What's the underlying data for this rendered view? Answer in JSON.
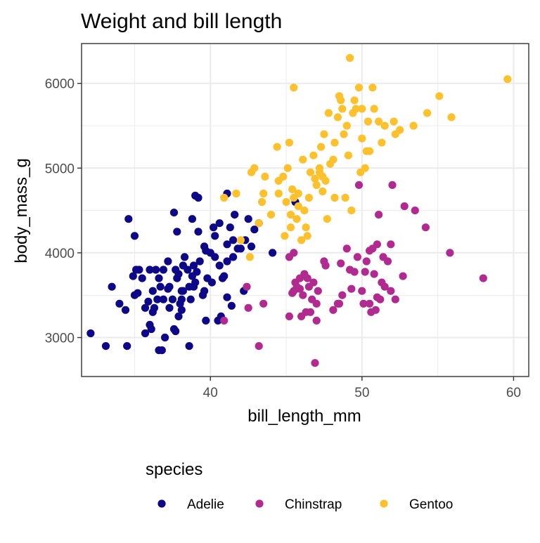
{
  "chart_data": {
    "type": "scatter",
    "title": "Weight and bill length",
    "xlabel": "bill_length_mm",
    "ylabel": "body_mass_g",
    "xlim": [
      31.5,
      61
    ],
    "ylim": [
      2540,
      6470
    ],
    "xticks": [
      40,
      50,
      60
    ],
    "yticks": [
      3000,
      4000,
      5000,
      6000
    ],
    "grid": true,
    "legend": {
      "title": "species",
      "position": "bottom"
    },
    "series": [
      {
        "name": "Adelie",
        "color": "#0d0887",
        "points": [
          [
            32.1,
            3050
          ],
          [
            33.1,
            2900
          ],
          [
            33.5,
            3600
          ],
          [
            34.0,
            3400
          ],
          [
            34.4,
            3325
          ],
          [
            34.5,
            2900
          ],
          [
            34.6,
            4400
          ],
          [
            35.0,
            4200
          ],
          [
            34.9,
            3725
          ],
          [
            35.1,
            3800
          ],
          [
            35.3,
            3800
          ],
          [
            35.5,
            3700
          ],
          [
            35.7,
            3350
          ],
          [
            35.9,
            3425
          ],
          [
            36.0,
            3800
          ],
          [
            36.2,
            3300
          ],
          [
            36.2,
            3550
          ],
          [
            36.4,
            3800
          ],
          [
            36.5,
            3450
          ],
          [
            36.6,
            3700
          ],
          [
            36.6,
            2850
          ],
          [
            36.8,
            2850
          ],
          [
            36.9,
            3800
          ],
          [
            37.0,
            3000
          ],
          [
            37.2,
            3575
          ],
          [
            37.3,
            3350
          ],
          [
            37.5,
            3450
          ],
          [
            37.6,
            4475
          ],
          [
            37.7,
            3075
          ],
          [
            37.8,
            4250
          ],
          [
            37.8,
            3700
          ],
          [
            37.9,
            3750
          ],
          [
            38.1,
            3325
          ],
          [
            38.1,
            3550
          ],
          [
            38.3,
            3950
          ],
          [
            38.5,
            3800
          ],
          [
            38.6,
            3600
          ],
          [
            38.6,
            2900
          ],
          [
            38.7,
            3450
          ],
          [
            38.8,
            3725
          ],
          [
            38.9,
            3600
          ],
          [
            39.0,
            4675
          ],
          [
            39.0,
            3650
          ],
          [
            39.2,
            4650
          ],
          [
            39.2,
            4250
          ],
          [
            39.5,
            3500
          ],
          [
            39.6,
            3550
          ],
          [
            39.7,
            3200
          ],
          [
            39.8,
            3700
          ],
          [
            40.0,
            4000
          ],
          [
            40.2,
            4300
          ],
          [
            40.3,
            3950
          ],
          [
            40.6,
            4350
          ],
          [
            40.7,
            3250
          ],
          [
            40.9,
            3725
          ],
          [
            41.1,
            3900
          ],
          [
            41.1,
            4100
          ],
          [
            41.3,
            4300
          ],
          [
            41.4,
            3375
          ],
          [
            41.5,
            3950
          ],
          [
            41.6,
            4450
          ],
          [
            41.1,
            4700
          ],
          [
            41.8,
            4050
          ],
          [
            42.0,
            4050
          ],
          [
            42.2,
            3550
          ],
          [
            42.3,
            4150
          ],
          [
            42.5,
            4400
          ],
          [
            42.7,
            4075
          ],
          [
            42.9,
            4275
          ],
          [
            43.2,
            4350
          ],
          [
            44.1,
            4000
          ],
          [
            45.6,
            4600
          ],
          [
            36.7,
            3600
          ],
          [
            37.2,
            3900
          ],
          [
            38.2,
            3850
          ],
          [
            38.0,
            3400
          ],
          [
            40.5,
            3200
          ],
          [
            36.0,
            3150
          ],
          [
            35.7,
            3050
          ],
          [
            35.2,
            3525
          ],
          [
            37.6,
            3100
          ],
          [
            39.3,
            3900
          ],
          [
            38.8,
            4400
          ],
          [
            40.1,
            3650
          ],
          [
            36.3,
            3350
          ],
          [
            37.7,
            3800
          ],
          [
            41.1,
            3475
          ],
          [
            38.9,
            3850
          ],
          [
            39.6,
            4075
          ],
          [
            40.8,
            3700
          ],
          [
            36.9,
            3450
          ],
          [
            38.2,
            3550
          ],
          [
            39.1,
            3775
          ],
          [
            40.3,
            4200
          ],
          [
            37.3,
            3600
          ],
          [
            35.0,
            3500
          ],
          [
            36.1,
            3100
          ],
          [
            38.1,
            3450
          ],
          [
            40.6,
            3850
          ],
          [
            39.7,
            4025
          ],
          [
            41.5,
            4150
          ],
          [
            37.9,
            3250
          ]
        ]
      },
      {
        "name": "Chinstrap",
        "color": "#b12a90",
        "points": [
          [
            40.9,
            3200
          ],
          [
            42.4,
            3600
          ],
          [
            42.5,
            3350
          ],
          [
            43.2,
            2900
          ],
          [
            43.5,
            3400
          ],
          [
            45.2,
            3250
          ],
          [
            45.2,
            3950
          ],
          [
            45.4,
            3525
          ],
          [
            45.5,
            3550
          ],
          [
            45.6,
            3650
          ],
          [
            45.7,
            3600
          ],
          [
            45.9,
            3575
          ],
          [
            46.0,
            3250
          ],
          [
            46.1,
            3500
          ],
          [
            46.2,
            3750
          ],
          [
            46.4,
            3700
          ],
          [
            46.5,
            3600
          ],
          [
            46.6,
            3300
          ],
          [
            46.8,
            3650
          ],
          [
            46.9,
            2700
          ],
          [
            47.0,
            3400
          ],
          [
            47.5,
            3900
          ],
          [
            47.6,
            3850
          ],
          [
            48.1,
            3325
          ],
          [
            48.5,
            3400
          ],
          [
            48.7,
            3500
          ],
          [
            49.0,
            4050
          ],
          [
            49.2,
            3800
          ],
          [
            49.5,
            3775
          ],
          [
            49.8,
            4800
          ],
          [
            49.7,
            3950
          ],
          [
            50.0,
            3550
          ],
          [
            50.2,
            3775
          ],
          [
            50.3,
            3900
          ],
          [
            50.5,
            3400
          ],
          [
            50.6,
            3300
          ],
          [
            50.7,
            4050
          ],
          [
            50.8,
            3750
          ],
          [
            50.9,
            3325
          ],
          [
            51.0,
            4100
          ],
          [
            51.2,
            3450
          ],
          [
            51.3,
            3650
          ],
          [
            51.4,
            3950
          ],
          [
            51.5,
            3600
          ],
          [
            51.7,
            3900
          ],
          [
            51.9,
            4100
          ],
          [
            52.0,
            4800
          ],
          [
            52.2,
            3450
          ],
          [
            52.7,
            3725
          ],
          [
            52.8,
            4550
          ],
          [
            53.5,
            4500
          ],
          [
            54.2,
            4300
          ],
          [
            55.8,
            4000
          ],
          [
            58.0,
            3700
          ],
          [
            45.5,
            4000
          ],
          [
            46.7,
            3450
          ],
          [
            47.0,
            3200
          ],
          [
            48.4,
            3400
          ],
          [
            49.3,
            3575
          ],
          [
            50.1,
            3400
          ],
          [
            50.5,
            4025
          ],
          [
            51.0,
            3475
          ],
          [
            51.9,
            3550
          ],
          [
            45.9,
            3700
          ],
          [
            48.6,
            3875
          ],
          [
            51.1,
            4450
          ],
          [
            46.3,
            3300
          ],
          [
            47.1,
            3550
          ]
        ]
      },
      {
        "name": "Gentoo",
        "color": "#fcc12d",
        "points": [
          [
            40.9,
            4650
          ],
          [
            41.7,
            4700
          ],
          [
            42.0,
            4150
          ],
          [
            42.6,
            3950
          ],
          [
            42.7,
            4950
          ],
          [
            42.9,
            5000
          ],
          [
            43.2,
            4350
          ],
          [
            43.4,
            4600
          ],
          [
            43.5,
            4700
          ],
          [
            43.6,
            4900
          ],
          [
            44.0,
            4450
          ],
          [
            44.4,
            5250
          ],
          [
            44.5,
            4850
          ],
          [
            44.9,
            4200
          ],
          [
            45.1,
            5000
          ],
          [
            45.2,
            5300
          ],
          [
            45.3,
            4300
          ],
          [
            45.4,
            4750
          ],
          [
            45.5,
            4650
          ],
          [
            45.5,
            5950
          ],
          [
            45.7,
            4400
          ],
          [
            45.8,
            4700
          ],
          [
            46.1,
            5100
          ],
          [
            46.2,
            4500
          ],
          [
            46.4,
            4200
          ],
          [
            46.5,
            4650
          ],
          [
            46.8,
            5150
          ],
          [
            47.0,
            4800
          ],
          [
            47.2,
            5000
          ],
          [
            47.3,
            5250
          ],
          [
            47.4,
            4725
          ],
          [
            47.5,
            5400
          ],
          [
            47.6,
            4850
          ],
          [
            47.8,
            5650
          ],
          [
            48.1,
            5100
          ],
          [
            48.2,
            5300
          ],
          [
            48.4,
            5600
          ],
          [
            48.5,
            5850
          ],
          [
            48.7,
            5700
          ],
          [
            48.8,
            5400
          ],
          [
            49.0,
            5500
          ],
          [
            49.1,
            5150
          ],
          [
            49.2,
            6300
          ],
          [
            49.4,
            5650
          ],
          [
            49.5,
            5800
          ],
          [
            49.6,
            5700
          ],
          [
            49.8,
            5950
          ],
          [
            50.0,
            5700
          ],
          [
            50.0,
            5350
          ],
          [
            50.2,
            5000
          ],
          [
            50.4,
            5550
          ],
          [
            50.5,
            5200
          ],
          [
            50.7,
            5950
          ],
          [
            50.8,
            5700
          ],
          [
            51.1,
            5550
          ],
          [
            51.3,
            5300
          ],
          [
            51.5,
            5500
          ],
          [
            52.1,
            5550
          ],
          [
            52.2,
            5400
          ],
          [
            52.5,
            5450
          ],
          [
            53.4,
            5500
          ],
          [
            54.3,
            5650
          ],
          [
            55.1,
            5850
          ],
          [
            55.9,
            5600
          ],
          [
            59.6,
            6050
          ],
          [
            48.6,
            5800
          ],
          [
            46.9,
            4875
          ],
          [
            45.8,
            4550
          ],
          [
            46.6,
            4950
          ],
          [
            47.7,
            4400
          ],
          [
            48.2,
            4650
          ],
          [
            49.3,
            4500
          ],
          [
            45.0,
            4600
          ],
          [
            44.8,
            4900
          ],
          [
            46.3,
            4300
          ],
          [
            47.9,
            5050
          ],
          [
            49.9,
            4950
          ],
          [
            48.9,
            4650
          ],
          [
            46.0,
            4150
          ],
          [
            47.2,
            4950
          ],
          [
            45.3,
            4450
          ],
          [
            50.3,
            5200
          ],
          [
            44.5,
            4700
          ],
          [
            47.4,
            4900
          ]
        ]
      }
    ]
  }
}
